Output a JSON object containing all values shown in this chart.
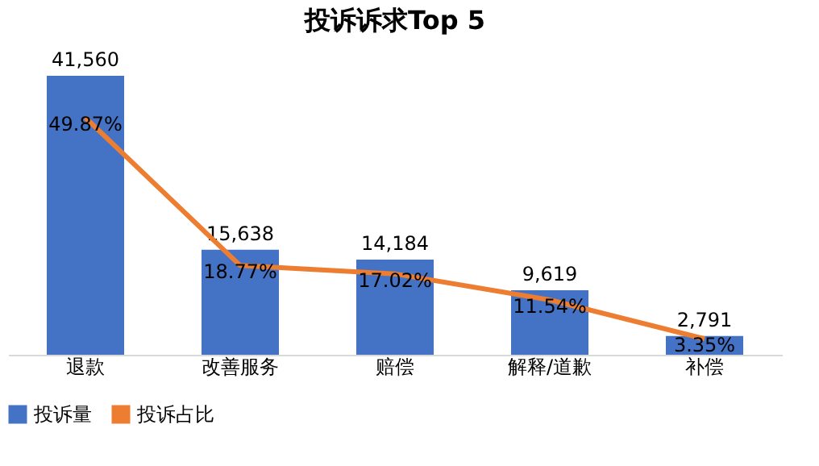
{
  "chart_data": {
    "type": "bar",
    "title": "投诉诉求Top 5",
    "categories": [
      "退款",
      "改善服务",
      "赔偿",
      "解释/道歉",
      "补偿"
    ],
    "series": [
      {
        "name": "投诉量",
        "color": "#4472c4",
        "values": [
          41560,
          15638,
          14184,
          9619,
          2791
        ],
        "value_labels": [
          "41,560",
          "15,638",
          "14,184",
          "9,619",
          "2,791"
        ]
      },
      {
        "name": "投诉占比",
        "type": "line",
        "axis": "y2",
        "color": "#ed7d31",
        "values": [
          49.87,
          18.77,
          17.02,
          11.54,
          3.35
        ],
        "value_labels": [
          "49.87%",
          "18.77%",
          "17.02%",
          "11.54%",
          "3.35%"
        ]
      }
    ],
    "tick_labels": "x",
    "legend": "bottom",
    "grid": false,
    "marker": "none"
  }
}
